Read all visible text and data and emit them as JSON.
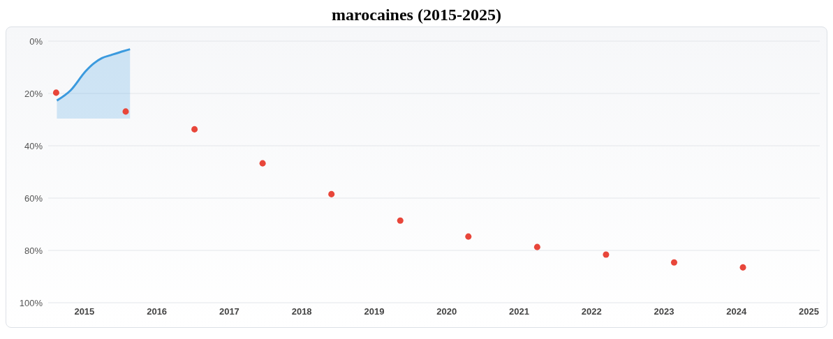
{
  "chart_data": {
    "type": "scatter",
    "title": "marocaines (2015-2025)",
    "xlim": [
      2014.5,
      2025.15
    ],
    "xticks": [
      2015,
      2016,
      2017,
      2018,
      2019,
      2020,
      2021,
      2022,
      2023,
      2024,
      2025
    ],
    "ylim": [
      100,
      0
    ],
    "yticks": [
      {
        "value": 0,
        "label": "0%"
      },
      {
        "value": 20,
        "label": "20%"
      },
      {
        "value": 40,
        "label": "40%"
      },
      {
        "value": 60,
        "label": "60%"
      },
      {
        "value": 80,
        "label": "80%"
      },
      {
        "value": 100,
        "label": "100%"
      }
    ],
    "grid": "y",
    "legend": false,
    "series": [
      {
        "type": "line",
        "color": "#3b9ade",
        "marker": "none",
        "x": [
          2014.62,
          2014.81,
          2015.02,
          2015.13,
          2015.24,
          2015.37,
          2015.54,
          2015.63
        ],
        "values": [
          22.7,
          18.8,
          11.4,
          8.5,
          6.5,
          5.3,
          3.8,
          3.1
        ],
        "lower": [
          29.6,
          29.6,
          29.6,
          29.6,
          29.6,
          29.6,
          29.6,
          29.6
        ],
        "upper": [
          22.7,
          18.8,
          11.4,
          8.5,
          6.5,
          5.3,
          3.8,
          3.1
        ]
      },
      {
        "color": "#e8463a",
        "marker": "circle",
        "x": [
          2014.61,
          2015.57,
          2016.52,
          2017.46,
          2018.41,
          2019.36,
          2020.3,
          2021.25,
          2022.2,
          2023.14,
          2024.09
        ],
        "values": [
          19.7,
          26.9,
          33.7,
          46.7,
          58.5,
          68.6,
          74.7,
          78.7,
          81.6,
          84.6,
          86.5
        ]
      }
    ]
  }
}
